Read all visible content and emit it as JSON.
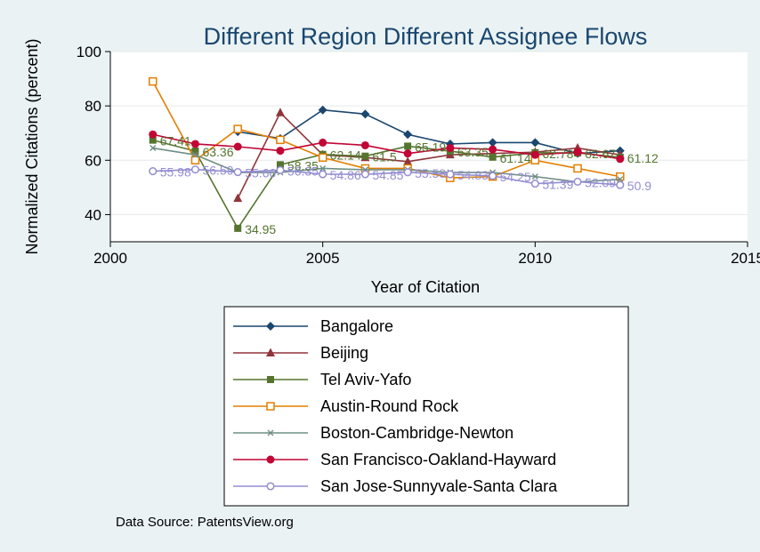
{
  "chart_data": {
    "type": "line",
    "title": "Different Region Different Assignee Flows",
    "xlabel": "Year of Citation",
    "ylabel": "Normalized Citations (percent)",
    "xlim": [
      2000,
      2015
    ],
    "ylim": [
      30,
      100
    ],
    "xticks": [
      2000,
      2005,
      2010,
      2015
    ],
    "yticks": [
      40,
      60,
      80,
      100
    ],
    "grid": "horizontal",
    "legend_position": "below",
    "source_note": "Data Source: PatentsView.org",
    "series": [
      {
        "name": "Bangalore",
        "color": "#1a476f",
        "marker": "diamond",
        "x": [
          2003,
          2004,
          2005,
          2006,
          2007,
          2008,
          2009,
          2010,
          2011,
          2012
        ],
        "y": [
          70.5,
          68,
          78.5,
          77,
          69.5,
          66,
          66.5,
          66.5,
          62.5,
          63.5
        ],
        "labels": []
      },
      {
        "name": "Beijing",
        "color": "#90353b",
        "marker": "triangle",
        "x": [
          2003,
          2004,
          2005,
          2006,
          2007,
          2008,
          2009,
          2010,
          2011,
          2012
        ],
        "y": [
          46,
          77.5,
          62,
          61,
          59.5,
          62,
          62.5,
          63,
          64.5,
          62
        ],
        "labels": []
      },
      {
        "name": "Tel Aviv-Yafo",
        "color": "#55752f",
        "marker": "square",
        "x": [
          2001,
          2002,
          2003,
          2004,
          2005,
          2006,
          2007,
          2008,
          2009,
          2010,
          2011,
          2012
        ],
        "y": [
          67.41,
          63.36,
          34.95,
          58.35,
          62.14,
          61.5,
          65.19,
          63.35,
          61.14,
          62.78,
          62.67,
          61.12
        ],
        "labels": [
          "67.41",
          "63.36",
          "34.95",
          "58.35",
          "62.14",
          "61.5",
          "65.19",
          "63.35",
          "61.14",
          "62.78",
          "62.67",
          "61.12"
        ]
      },
      {
        "name": "Austin-Round Rock",
        "color": "#e37e00",
        "marker": "hollow-square",
        "x": [
          2001,
          2002,
          2003,
          2004,
          2005,
          2006,
          2007,
          2008,
          2009,
          2010,
          2011,
          2012
        ],
        "y": [
          89,
          60,
          71.5,
          67.5,
          61,
          57,
          57,
          53.5,
          54,
          60,
          57,
          54
        ],
        "labels": []
      },
      {
        "name": "Boston-Cambridge-Newton",
        "color": "#6e8e84",
        "marker": "x",
        "x": [
          2001,
          2002,
          2003,
          2004,
          2005,
          2006,
          2007,
          2008,
          2009,
          2010,
          2011,
          2012
        ],
        "y": [
          64.5,
          62,
          55.5,
          55.5,
          57,
          56.5,
          56.5,
          55.5,
          55.5,
          54,
          52,
          53
        ],
        "labels": []
      },
      {
        "name": "San Francisco-Oakland-Hayward",
        "color": "#c10534",
        "marker": "circle",
        "x": [
          2001,
          2002,
          2003,
          2004,
          2005,
          2006,
          2007,
          2008,
          2009,
          2010,
          2011,
          2012
        ],
        "y": [
          69.5,
          66,
          65,
          63.5,
          66.5,
          65.5,
          62.5,
          64.5,
          64,
          62,
          63,
          60.5
        ],
        "labels": []
      },
      {
        "name": "San Jose-Sunnyvale-Santa Clara",
        "color": "#938dd2",
        "marker": "hollow-circle",
        "x": [
          2001,
          2002,
          2003,
          2004,
          2005,
          2006,
          2007,
          2008,
          2009,
          2010,
          2011,
          2012
        ],
        "y": [
          55.98,
          56.59,
          55.66,
          56.35,
          54.86,
          54.85,
          55.58,
          54.83,
          54.25,
          51.39,
          52.09,
          50.9
        ],
        "labels": [
          "55.98",
          "56.59",
          "55.66",
          "56.35",
          "54.86",
          "54.85",
          "55.58",
          "54.83",
          "54.25",
          "51.39",
          "52.09",
          "50.9"
        ]
      }
    ]
  }
}
